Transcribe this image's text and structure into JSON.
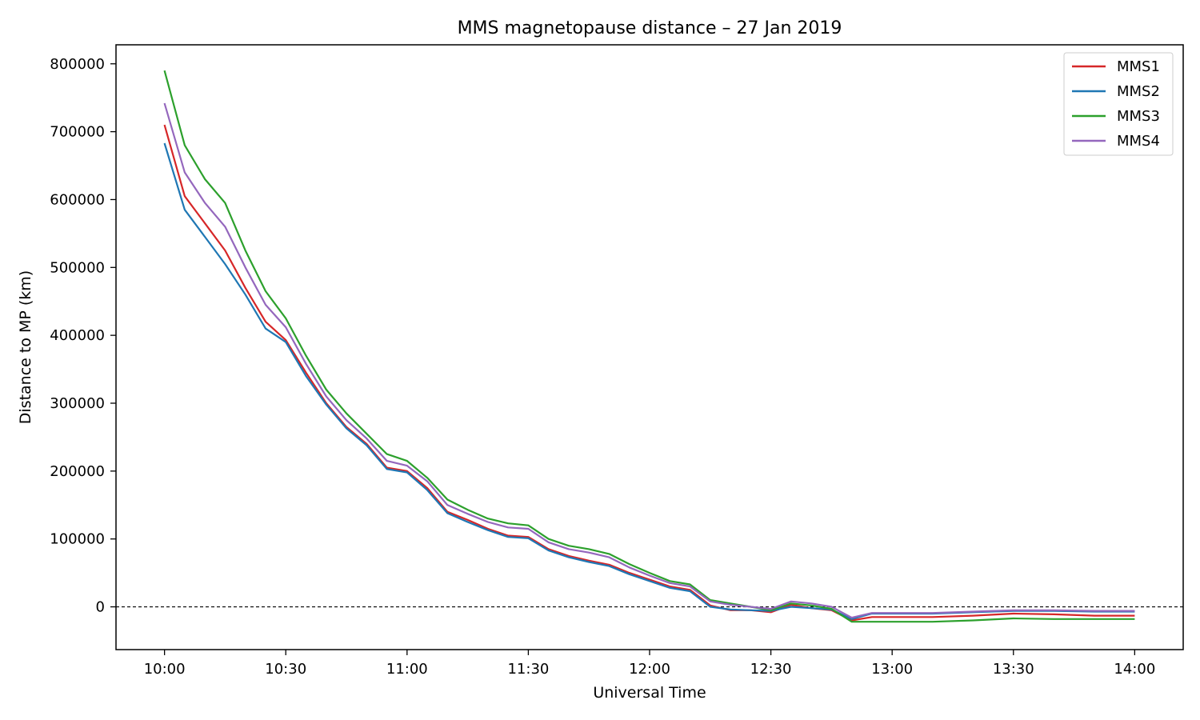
{
  "chart_data": {
    "type": "line",
    "title": "MMS magnetopause distance – 27 Jan 2019",
    "xlabel": "Universal Time",
    "ylabel": "Distance to MP (km)",
    "xlim": [
      "9:48",
      "14:12"
    ],
    "ylim": [
      -63000,
      828000
    ],
    "x_ticks": [
      "10:00",
      "10:30",
      "11:00",
      "11:30",
      "12:00",
      "12:30",
      "13:00",
      "13:30",
      "14:00"
    ],
    "y_ticks": [
      "0",
      "100000",
      "200000",
      "300000",
      "400000",
      "500000",
      "600000",
      "700000",
      "800000"
    ],
    "grid": false,
    "legend": "top-right",
    "reference_line": {
      "y": 0,
      "style": "dashed",
      "color": "#000000"
    },
    "x": [
      "10:00",
      "10:05",
      "10:10",
      "10:15",
      "10:20",
      "10:25",
      "10:30",
      "10:35",
      "10:40",
      "10:45",
      "10:50",
      "10:55",
      "11:00",
      "11:05",
      "11:10",
      "11:15",
      "11:20",
      "11:25",
      "11:30",
      "11:35",
      "11:40",
      "11:45",
      "11:50",
      "11:55",
      "12:00",
      "12:05",
      "12:10",
      "12:15",
      "12:20",
      "12:25",
      "12:30",
      "12:35",
      "12:40",
      "12:45",
      "12:50",
      "12:55",
      "13:00",
      "13:10",
      "13:20",
      "13:30",
      "13:40",
      "13:50",
      "14:00"
    ],
    "series": [
      {
        "name": "MMS1",
        "color": "#d62728",
        "values": [
          710000,
          605000,
          565000,
          525000,
          470000,
          420000,
          393000,
          345000,
          300000,
          265000,
          240000,
          205000,
          200000,
          175000,
          140000,
          128000,
          115000,
          105000,
          103000,
          85000,
          75000,
          68000,
          62000,
          50000,
          40000,
          30000,
          25000,
          2000,
          -5000,
          -5000,
          -8000,
          3000,
          -2000,
          -5000,
          -20000,
          -15000,
          -15000,
          -15000,
          -13000,
          -10000,
          -11000,
          -13000,
          -13000
        ]
      },
      {
        "name": "MMS2",
        "color": "#1f77b4",
        "values": [
          683000,
          585000,
          545000,
          505000,
          460000,
          410000,
          390000,
          340000,
          298000,
          263000,
          238000,
          203000,
          198000,
          172000,
          138000,
          125000,
          113000,
          103000,
          101000,
          83000,
          73000,
          66000,
          60000,
          48000,
          38000,
          28000,
          23000,
          0,
          -4000,
          -5000,
          -6000,
          0,
          -2000,
          -4000,
          -18000,
          -10000,
          -10000,
          -10000,
          -8000,
          -6000,
          -6000,
          -7000,
          -7000
        ]
      },
      {
        "name": "MMS3",
        "color": "#2ca02c",
        "values": [
          790000,
          680000,
          630000,
          595000,
          525000,
          465000,
          425000,
          370000,
          320000,
          285000,
          255000,
          225000,
          215000,
          190000,
          158000,
          143000,
          130000,
          123000,
          120000,
          100000,
          90000,
          85000,
          78000,
          63000,
          50000,
          38000,
          33000,
          10000,
          5000,
          0,
          -5000,
          5000,
          2000,
          -3000,
          -22000,
          -22000,
          -22000,
          -22000,
          -20000,
          -17000,
          -18000,
          -18000,
          -18000
        ]
      },
      {
        "name": "MMS4",
        "color": "#9467bd",
        "values": [
          742000,
          640000,
          595000,
          560000,
          500000,
          445000,
          412000,
          358000,
          310000,
          275000,
          248000,
          215000,
          208000,
          185000,
          150000,
          137000,
          125000,
          117000,
          115000,
          95000,
          85000,
          80000,
          73000,
          58000,
          46000,
          35000,
          30000,
          8000,
          3000,
          0,
          -3000,
          8000,
          5000,
          0,
          -16000,
          -9000,
          -9000,
          -9000,
          -7000,
          -5000,
          -5000,
          -6000,
          -6000
        ]
      }
    ]
  }
}
